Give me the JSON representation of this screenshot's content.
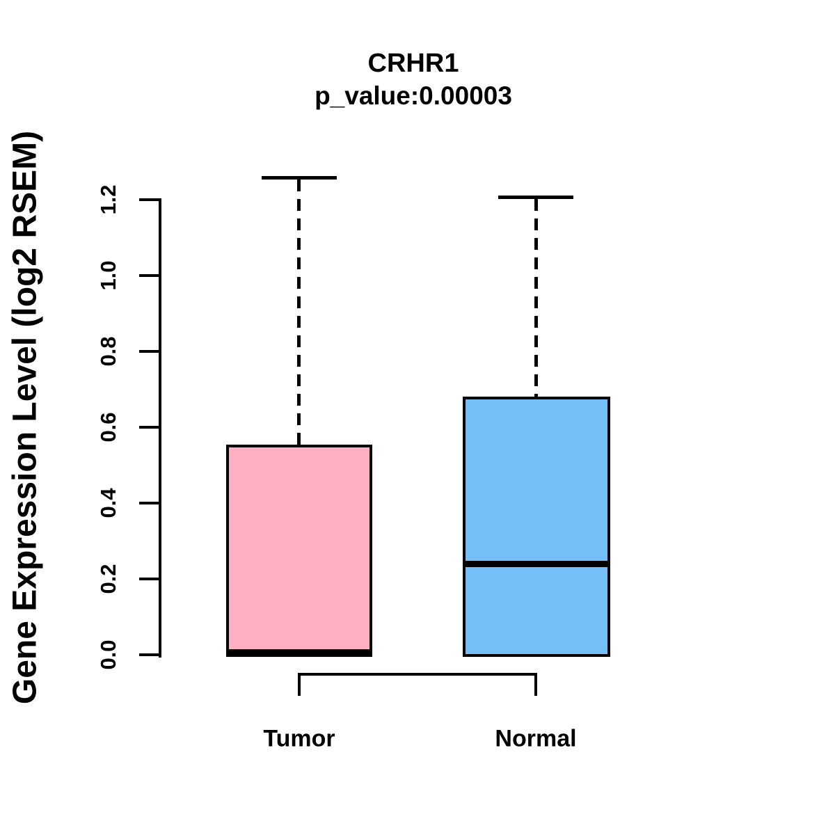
{
  "chart_data": {
    "type": "boxplot",
    "title": "CRHR1",
    "subtitle": "p_value:0.00003",
    "ylabel": "Gene Expression Level (log2 RSEM)",
    "xlabel": "",
    "ylim": [
      0.0,
      1.25
    ],
    "ytick_values": [
      0.0,
      0.2,
      0.4,
      0.6,
      0.8,
      1.0,
      1.2
    ],
    "ytick_labels_top_to_bottom": [
      "1.2",
      "1.0",
      "0.8",
      "0.6",
      "0.4",
      "0.2",
      "0.0"
    ],
    "categories": [
      "Tumor",
      "Normal"
    ],
    "series": [
      {
        "name": "Tumor",
        "box_color": "#ffb0c2",
        "lower_whisker": 0.0,
        "q1": 0.0,
        "median": 0.0,
        "q3": 0.55,
        "upper_whisker": 1.25
      },
      {
        "name": "Normal",
        "box_color": "#74bff7",
        "lower_whisker": 0.0,
        "q1": 0.0,
        "median": 0.24,
        "q3": 0.68,
        "upper_whisker": 1.2
      }
    ],
    "whisker_style": "dashed",
    "line_color": "#000000",
    "background_color": "#ffffff",
    "grid": false,
    "legend": false,
    "comparison_bracket": {
      "from": "Tumor",
      "to": "Normal"
    }
  }
}
